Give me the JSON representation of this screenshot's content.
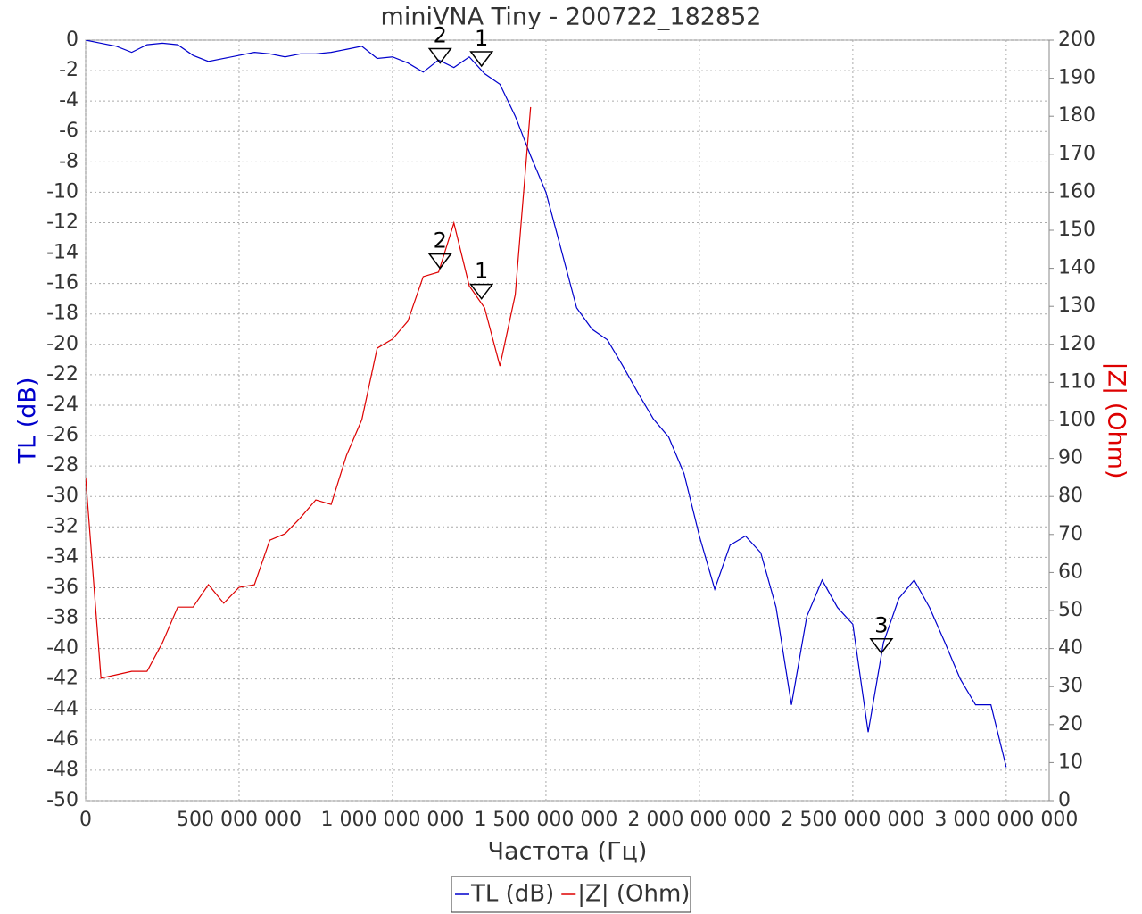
{
  "chart_data": {
    "type": "line",
    "title": "miniVNA Tiny - 200722_182852",
    "xlabel": "Частота (Гц)",
    "ylabel": "TL (dB)",
    "y2label": "|Z| (Ohm)",
    "x": [
      0,
      50000000,
      100000000,
      150000000,
      200000000,
      250000000,
      300000000,
      350000000,
      400000000,
      450000000,
      500000000,
      550000000,
      600000000,
      650000000,
      700000000,
      750000000,
      800000000,
      850000000,
      900000000,
      950000000,
      1000000000,
      1050000000,
      1100000000,
      1150000000,
      1200000000,
      1250000000,
      1300000000,
      1350000000,
      1400000000,
      1450000000,
      1500000000,
      1550000000,
      1600000000,
      1650000000,
      1700000000,
      1750000000,
      1800000000,
      1850000000,
      1900000000,
      1950000000,
      2000000000,
      2050000000,
      2100000000,
      2150000000,
      2200000000,
      2250000000,
      2300000000,
      2350000000,
      2400000000,
      2450000000,
      2500000000,
      2550000000,
      2600000000,
      2650000000,
      2700000000,
      2750000000,
      2800000000,
      2850000000,
      2900000000,
      2950000000,
      3000000000
    ],
    "series": [
      {
        "name": "TL (dB)",
        "color": "#0000cc",
        "axis": "y",
        "values": [
          0,
          -0.2,
          -0.4,
          -0.8,
          -0.3,
          -0.2,
          -0.3,
          -1.0,
          -1.4,
          -1.2,
          -1.0,
          -0.8,
          -0.9,
          -1.1,
          -0.9,
          -0.9,
          -0.8,
          -0.6,
          -0.4,
          -1.2,
          -1.1,
          -1.5,
          -2.1,
          -1.3,
          -1.8,
          -1.1,
          -2.2,
          -2.9,
          -5.0,
          -7.6,
          -10.0,
          -13.8,
          -17.6,
          -19.0,
          -19.7,
          -21.4,
          -23.2,
          -24.9,
          -26.1,
          -28.5,
          -32.6,
          -36.1,
          -33.2,
          -32.6,
          -33.7,
          -37.3,
          -43.7,
          -37.9,
          -35.5,
          -37.3,
          -38.4,
          -45.5,
          -39.6,
          -36.7,
          -35.5,
          -37.3,
          -39.6,
          -42.0,
          -43.7,
          -43.7,
          -47.8
        ]
      },
      {
        "name": "|Z| (Ohm)",
        "color": "#dd0000",
        "axis": "y2",
        "values": [
          85,
          32.2,
          33.1,
          34.0,
          34.0,
          41.5,
          50.9,
          50.9,
          56.8,
          51.9,
          56.1,
          56.8,
          68.5,
          70.2,
          74.4,
          79.1,
          77.9,
          90.8,
          100.2,
          119.0,
          121.4,
          126.1,
          137.8,
          139.0,
          151.9,
          135.4,
          129.6,
          114.3,
          133.1,
          182.4,
          null,
          null,
          null,
          null,
          null,
          null,
          null,
          null,
          null,
          null,
          null,
          null,
          null,
          null,
          null,
          null,
          null,
          null,
          null,
          null,
          null,
          null,
          null,
          null,
          null,
          null,
          null,
          null,
          null,
          null,
          null
        ]
      }
    ],
    "markers": [
      {
        "label": "2",
        "x": 1155000000,
        "y": -1.5,
        "axis": "y"
      },
      {
        "label": "1",
        "x": 1290000000,
        "y": -1.7,
        "axis": "y"
      },
      {
        "label": "3",
        "x": 2593000000,
        "y": -40.3,
        "axis": "y"
      },
      {
        "label": "2",
        "x": 1155000000,
        "y": 140,
        "axis": "y2"
      },
      {
        "label": "1",
        "x": 1290000000,
        "y": 132,
        "axis": "y2"
      }
    ],
    "xlim": [
      0,
      3140000000
    ],
    "xticks": [
      0,
      {
        "value": 500000000,
        "label": "500 000 000"
      },
      {
        "value": 1000000000,
        "label": "1 000 000 000"
      },
      {
        "value": 1500000000,
        "label": "1 500 000 000"
      },
      {
        "value": 2000000000,
        "label": "2 000 000 000"
      },
      {
        "value": 2500000000,
        "label": "2 500 000 000"
      },
      {
        "value": 3000000000,
        "label": "3 000 000 000"
      }
    ],
    "ylim": [
      -50,
      0
    ],
    "yticks": [
      -50,
      -48,
      -46,
      -44,
      -42,
      -40,
      -38,
      -36,
      -34,
      -32,
      -30,
      -28,
      -26,
      -24,
      -22,
      -20,
      -18,
      -16,
      -14,
      -12,
      -10,
      -8,
      -6,
      -4,
      -2,
      0
    ],
    "y2lim": [
      0,
      200
    ],
    "y2ticks": [
      0,
      10,
      20,
      30,
      40,
      50,
      60,
      70,
      80,
      90,
      100,
      110,
      120,
      130,
      140,
      150,
      160,
      170,
      180,
      190,
      200
    ],
    "grid": true
  }
}
